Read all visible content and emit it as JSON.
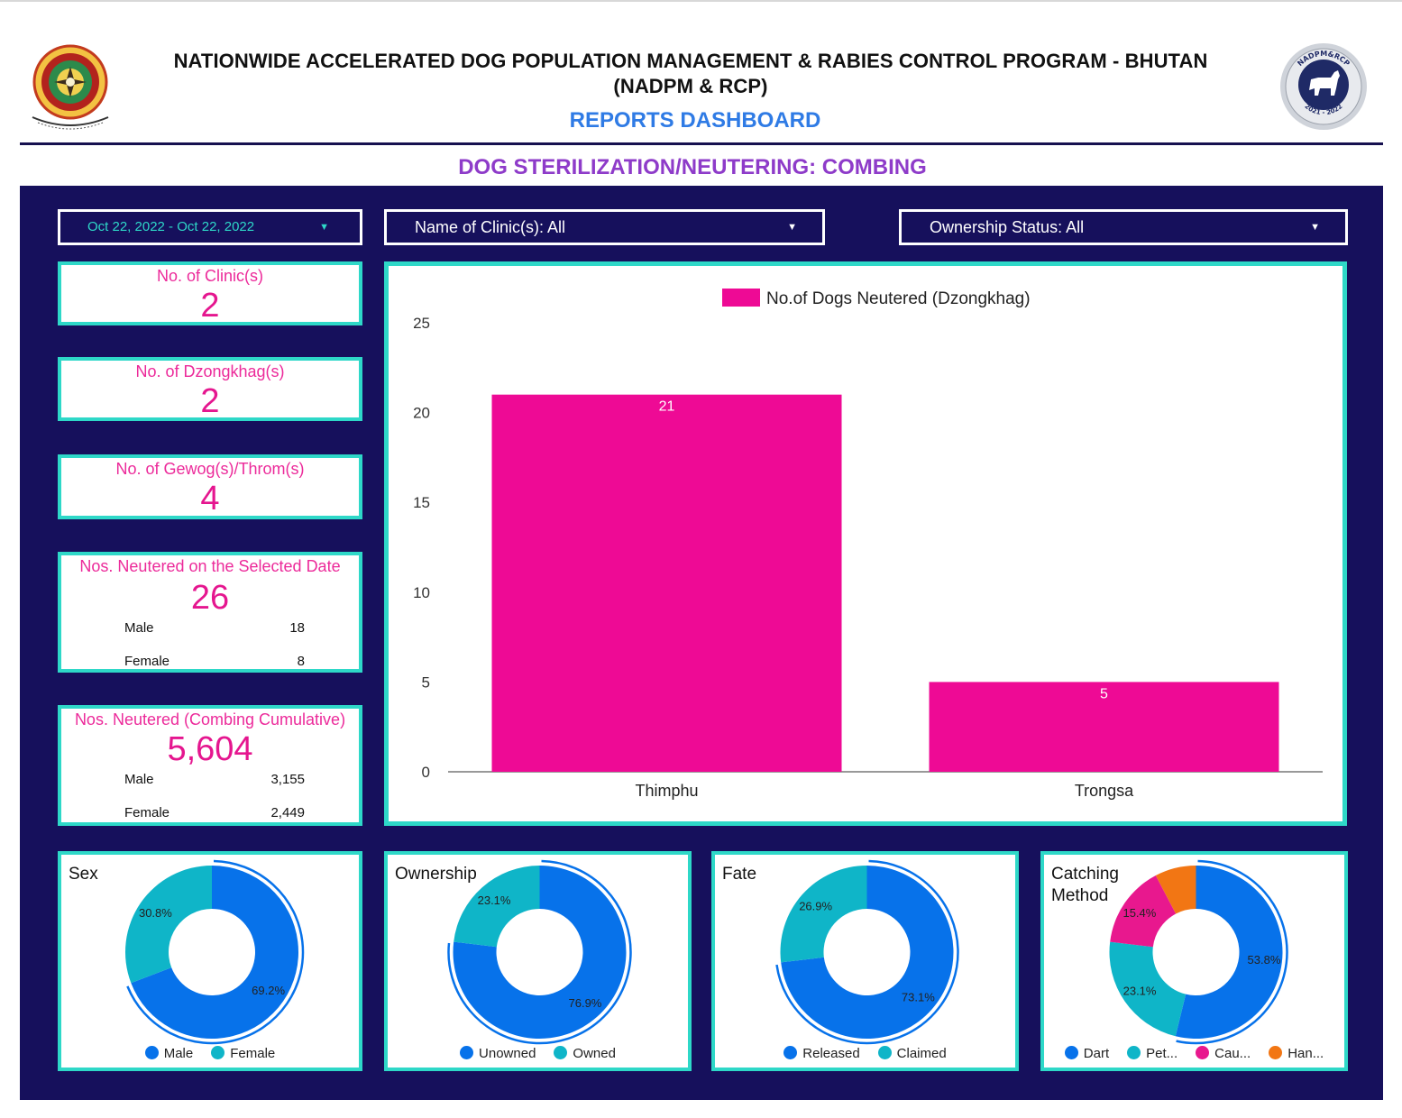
{
  "header": {
    "title_line1": "NATIONWIDE ACCELERATED DOG POPULATION MANAGEMENT & RABIES CONTROL PROGRAM - BHUTAN",
    "title_line2": "(NADPM & RCP)",
    "subtitle": "REPORTS DASHBOARD",
    "section_title": "DOG STERILIZATION/NEUTERING: COMBING",
    "logo_left_icon": "bhutan-emblem-icon",
    "logo_right_icon": "nadpm-rcp-dog-logo-icon",
    "logo_right_text_top": "NADPM&RCP",
    "logo_right_text_bottom": "2021 - 2022"
  },
  "filters": {
    "date_range": "Oct 22, 2022 - Oct 22, 2022",
    "clinic": "Name of Clinic(s): All",
    "ownership": "Ownership Status: All",
    "caret_icon": "caret-down-icon"
  },
  "kpis": {
    "clinics": {
      "title": "No. of Clinic(s)",
      "value": "2"
    },
    "dzongkhags": {
      "title": "No. of Dzongkhag(s)",
      "value": "2"
    },
    "gewogs": {
      "title": "No. of Gewog(s)/Throm(s)",
      "value": "4"
    },
    "selected_date": {
      "title": "Nos. Neutered on the Selected Date",
      "value": "26",
      "male_label": "Male",
      "male_value": "18",
      "female_label": "Female",
      "female_value": "8"
    },
    "cumulative": {
      "title": "Nos. Neutered (Combing Cumulative)",
      "value": "5,604",
      "male_label": "Male",
      "male_value": "3,155",
      "female_label": "Female",
      "female_value": "2,449"
    }
  },
  "colors": {
    "panel_bg": "#16105c",
    "accent_teal": "#2ed8c8",
    "kpi_pink": "#e5168f",
    "bar_pink": "#ee0a95",
    "blue": "#0772ea",
    "cyan": "#0fb5c8",
    "magenta": "#e8188e",
    "orange": "#f27614",
    "subtitle_blue": "#2f7be5",
    "section_purple": "#8e3bc9"
  },
  "chart_data": [
    {
      "type": "bar",
      "series": [
        {
          "name": "No.of Dogs Neutered (Dzongkhag)",
          "values": [
            21,
            5
          ]
        }
      ],
      "categories": [
        "Thimphu",
        "Trongsa"
      ],
      "data_labels": [
        "21",
        "5"
      ],
      "ylim": [
        0,
        25
      ],
      "yticks": [
        0,
        5,
        10,
        15,
        20,
        25
      ],
      "legend": "top-center",
      "grid": false
    },
    {
      "type": "pie",
      "title": "Sex",
      "categories": [
        "Male",
        "Female"
      ],
      "values": [
        69.2,
        30.8
      ],
      "labels": [
        "69.2%",
        "30.8%"
      ],
      "colors": [
        "#0772ea",
        "#0fb5c8"
      ],
      "legend": "bottom"
    },
    {
      "type": "pie",
      "title": "Ownership",
      "categories": [
        "Unowned",
        "Owned"
      ],
      "values": [
        76.9,
        23.1
      ],
      "labels": [
        "76.9%",
        "23.1%"
      ],
      "colors": [
        "#0772ea",
        "#0fb5c8"
      ],
      "legend": "bottom"
    },
    {
      "type": "pie",
      "title": "Fate",
      "categories": [
        "Released",
        "Claimed"
      ],
      "values": [
        73.1,
        26.9
      ],
      "labels": [
        "73.1%",
        "26.9%"
      ],
      "colors": [
        "#0772ea",
        "#0fb5c8"
      ],
      "legend": "bottom"
    },
    {
      "type": "pie",
      "title": "Catching Method",
      "categories": [
        "Dart",
        "Pet...",
        "Cau...",
        "Han..."
      ],
      "values": [
        53.8,
        23.1,
        15.4,
        7.7
      ],
      "labels": [
        "53.8%",
        "23.1%",
        "15.4%",
        ""
      ],
      "colors": [
        "#0772ea",
        "#0fb5c8",
        "#e8188e",
        "#f27614"
      ],
      "legend": "bottom"
    }
  ]
}
